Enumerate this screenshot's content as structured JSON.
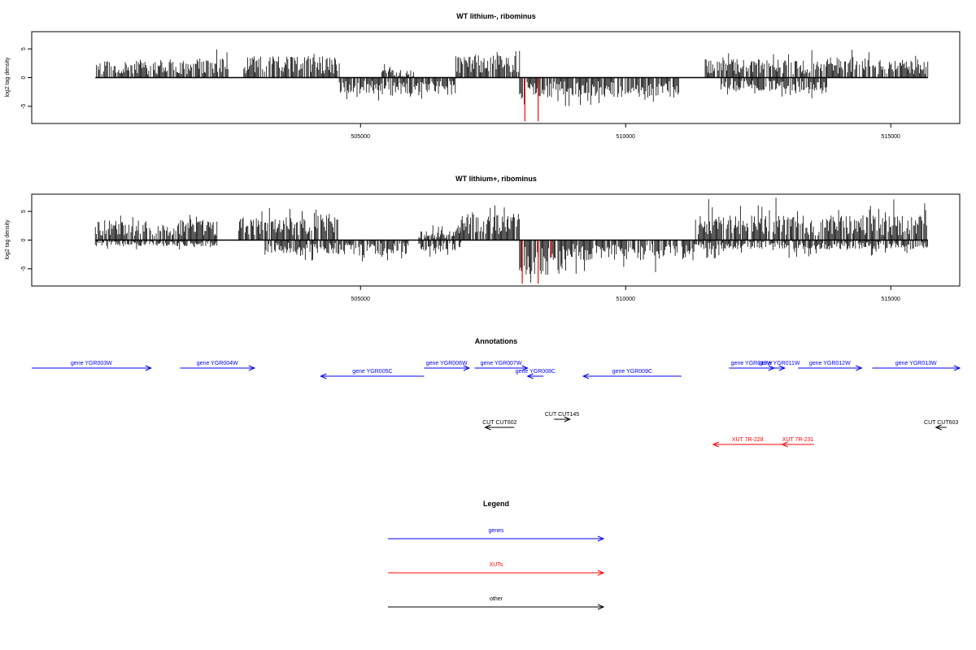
{
  "chart_data": [
    {
      "type": "bar",
      "title": "WT lithium-, ribominus",
      "ylabel": "log2 tag density",
      "xlabel": "",
      "xlim": [
        498800,
        516300
      ],
      "ylim": [
        -8,
        8
      ],
      "x_ticks": [
        505000,
        510000,
        515000
      ],
      "y_ticks": [
        -5,
        0,
        5
      ],
      "x_tick_labels": [
        "505000",
        "510000",
        "515000"
      ],
      "y_tick_labels": [
        "-5",
        "0",
        "5"
      ],
      "baseline_range": [
        500000,
        515700
      ],
      "coverage_regions": [
        {
          "start": 500000,
          "end": 501900,
          "strand": "+",
          "level": 2.2,
          "max": 3.2
        },
        {
          "start": 501900,
          "end": 502500,
          "strand": "+",
          "level": 2.6,
          "max": 5.0
        },
        {
          "start": 502800,
          "end": 504600,
          "strand": "+",
          "level": 2.8,
          "max": 4.6
        },
        {
          "start": 504600,
          "end": 506800,
          "strand": "-",
          "level": 2.2,
          "max": 4.2
        },
        {
          "start": 505400,
          "end": 506000,
          "strand": "+",
          "level": 1.0,
          "max": 2.4
        },
        {
          "start": 506800,
          "end": 508000,
          "strand": "+",
          "level": 3.0,
          "max": 4.9
        },
        {
          "start": 508000,
          "end": 511000,
          "strand": "-",
          "level": 2.6,
          "max": 5.0
        },
        {
          "start": 511500,
          "end": 515700,
          "strand": "+",
          "level": 2.4,
          "max": 5.0
        },
        {
          "start": 511800,
          "end": 513800,
          "strand": "-",
          "level": 1.8,
          "max": 3.6
        }
      ],
      "highlights": [
        {
          "x": 508100,
          "y": -7.6,
          "color": "#ff0000"
        },
        {
          "x": 508350,
          "y": -7.6,
          "color": "#ff0000"
        }
      ]
    },
    {
      "type": "bar",
      "title": "WT lithium+, ribominus",
      "ylabel": "log2 tag density",
      "xlabel": "",
      "xlim": [
        498800,
        516300
      ],
      "ylim": [
        -8,
        8
      ],
      "x_ticks": [
        505000,
        510000,
        515000
      ],
      "y_ticks": [
        -5,
        0,
        5
      ],
      "x_tick_labels": [
        "505000",
        "510000",
        "515000"
      ],
      "y_tick_labels": [
        "-5",
        "0",
        "5"
      ],
      "baseline_range": [
        500000,
        515700
      ],
      "coverage_regions": [
        {
          "start": 500000,
          "end": 502300,
          "strand": "+",
          "level": 2.6,
          "max": 4.6
        },
        {
          "start": 500000,
          "end": 502300,
          "strand": "-",
          "level": 0.8,
          "max": 1.8
        },
        {
          "start": 502700,
          "end": 504600,
          "strand": "+",
          "level": 3.2,
          "max": 5.6
        },
        {
          "start": 503200,
          "end": 505900,
          "strand": "-",
          "level": 2.0,
          "max": 3.8
        },
        {
          "start": 506100,
          "end": 506900,
          "strand": "+",
          "level": 1.2,
          "max": 2.6
        },
        {
          "start": 506100,
          "end": 506900,
          "strand": "-",
          "level": 1.4,
          "max": 3.0
        },
        {
          "start": 506900,
          "end": 508000,
          "strand": "+",
          "level": 3.4,
          "max": 6.2
        },
        {
          "start": 508000,
          "end": 508800,
          "strand": "-",
          "level": 4.6,
          "max": 7.6
        },
        {
          "start": 508800,
          "end": 511300,
          "strand": "-",
          "level": 2.6,
          "max": 6.0
        },
        {
          "start": 511300,
          "end": 515700,
          "strand": "+",
          "level": 3.2,
          "max": 7.4
        },
        {
          "start": 511300,
          "end": 515700,
          "strand": "-",
          "level": 1.2,
          "max": 3.2
        }
      ],
      "highlights": [
        {
          "x": 508050,
          "y": -7.6,
          "color": "#ff0000"
        },
        {
          "x": 508350,
          "y": -7.6,
          "color": "#ff0000"
        },
        {
          "x": 508600,
          "y": -3.0,
          "color": "#ff0000"
        }
      ]
    }
  ],
  "annotations": {
    "title": "Annotations",
    "items": [
      {
        "label": "gene YGR003W",
        "start": 498800,
        "end": 501050,
        "strand": "+",
        "row": 0,
        "color": "#0000ff"
      },
      {
        "label": "gene YGR004W",
        "start": 501600,
        "end": 503000,
        "strand": "+",
        "row": 0,
        "color": "#0000ff"
      },
      {
        "label": "gene YGR005C",
        "start": 504250,
        "end": 506200,
        "strand": "-",
        "row": 1,
        "color": "#0000ff"
      },
      {
        "label": "gene YGR006W",
        "start": 506200,
        "end": 507050,
        "strand": "+",
        "row": 0,
        "color": "#0000ff"
      },
      {
        "label": "gene YGR007W",
        "start": 507150,
        "end": 508150,
        "strand": "+",
        "row": 0,
        "color": "#0000ff"
      },
      {
        "label": "gene YGR008C",
        "start": 508150,
        "end": 508450,
        "strand": "-",
        "row": 1,
        "color": "#0000ff"
      },
      {
        "label": "gene YGR009C",
        "start": 509200,
        "end": 511050,
        "strand": "-",
        "row": 1,
        "color": "#0000ff"
      },
      {
        "label": "gene YGR010W",
        "start": 511950,
        "end": 512800,
        "strand": "+",
        "row": 0,
        "color": "#0000ff"
      },
      {
        "label": "gene YGR011W",
        "start": 512800,
        "end": 513000,
        "strand": "+",
        "row": 0,
        "color": "#0000ff"
      },
      {
        "label": "gene YGR012W",
        "start": 513250,
        "end": 514450,
        "strand": "+",
        "row": 0,
        "color": "#0000ff"
      },
      {
        "label": "gene YGR013W",
        "start": 514650,
        "end": 516300,
        "strand": "+",
        "row": 0,
        "color": "#0000ff"
      },
      {
        "label": "CUT CUT602",
        "start": 507350,
        "end": 507900,
        "strand": "-",
        "row": 3,
        "color": "#000000"
      },
      {
        "label": "CUT CUT145",
        "start": 508650,
        "end": 508950,
        "strand": "+",
        "row": 2,
        "color": "#000000"
      },
      {
        "label": "CUT CUT603",
        "start": 515850,
        "end": 516050,
        "strand": "-",
        "row": 3,
        "color": "#000000"
      },
      {
        "label": "XUT 7R-228",
        "start": 511650,
        "end": 512950,
        "strand": "-",
        "row": 4,
        "color": "#ff0000"
      },
      {
        "label": "XUT 7R-231",
        "start": 512950,
        "end": 513550,
        "strand": "-",
        "row": 4,
        "color": "#ff0000"
      }
    ]
  },
  "legend": {
    "title": "Legend",
    "items": [
      {
        "label": "genes",
        "color": "#0000ff"
      },
      {
        "label": "XUTs",
        "color": "#ff0000"
      },
      {
        "label": "other",
        "color": "#000000"
      }
    ]
  }
}
